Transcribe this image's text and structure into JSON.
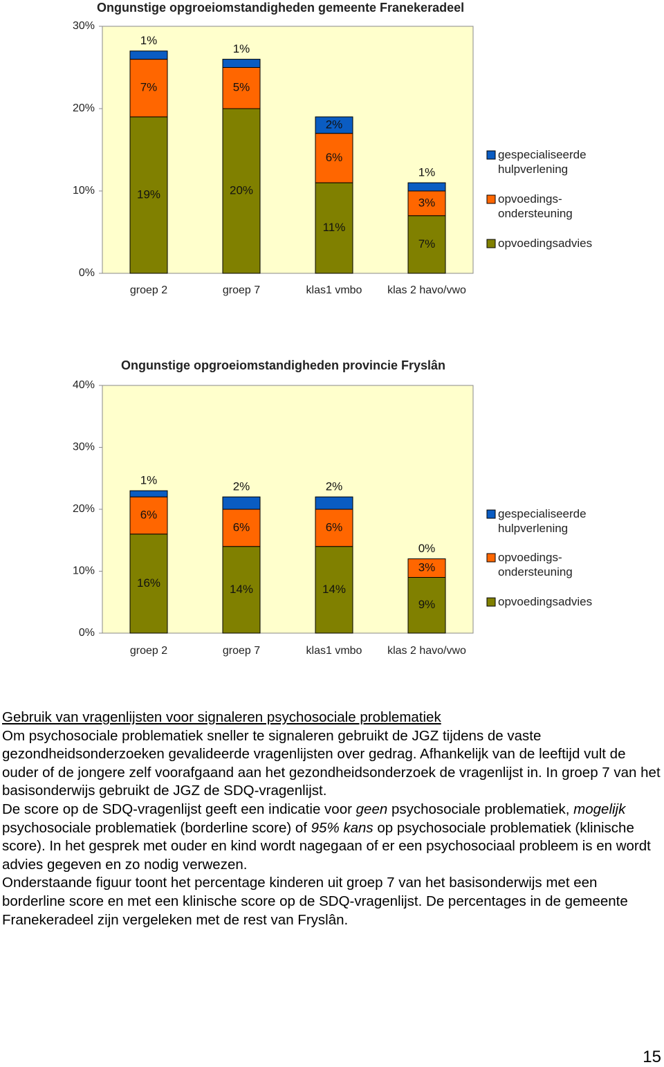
{
  "chart_data": [
    {
      "type": "stacked-bar",
      "title": "Ongunstige opgroeiomstandigheden gemeente Franekeradeel",
      "categories": [
        "groep 2",
        "groep 7",
        "klas1 vmbo",
        "klas 2 havo/vwo"
      ],
      "series": [
        {
          "name": "opvoedingsadvies",
          "color": "#808000",
          "values": [
            19,
            20,
            11,
            7
          ],
          "value_labels": [
            "19%",
            "20%",
            "11%",
            "7%"
          ]
        },
        {
          "name": "opvoedings-ondersteuning",
          "color": "#ff6600",
          "values": [
            7,
            5,
            6,
            3
          ],
          "value_labels": [
            "7%",
            "5%",
            "6%",
            "3%"
          ]
        },
        {
          "name": "gespecialiseerde hulpverlening",
          "color": "#0a5cc2",
          "values": [
            1,
            1,
            2,
            1
          ],
          "value_labels": [
            "1%",
            "1%",
            "2%",
            "1%"
          ]
        }
      ],
      "ylim": [
        0,
        30
      ],
      "yticks": [
        {
          "value": 0,
          "label": "0%"
        },
        {
          "value": 10,
          "label": "10%"
        },
        {
          "value": 20,
          "label": "20%"
        },
        {
          "value": 30,
          "label": "30%"
        }
      ],
      "legend": "right",
      "background": "#ffffcc"
    },
    {
      "type": "stacked-bar",
      "title": "Ongunstige opgroeiomstandigheden provincie Fryslân",
      "categories": [
        "groep 2",
        "groep 7",
        "klas1 vmbo",
        "klas 2 havo/vwo"
      ],
      "series": [
        {
          "name": "opvoedingsadvies",
          "color": "#808000",
          "values": [
            16,
            14,
            14,
            9
          ],
          "value_labels": [
            "16%",
            "14%",
            "14%",
            "9%"
          ]
        },
        {
          "name": "opvoedings-ondersteuning",
          "color": "#ff6600",
          "values": [
            6,
            6,
            6,
            3
          ],
          "value_labels": [
            "6%",
            "6%",
            "6%",
            "3%"
          ]
        },
        {
          "name": "gespecialiseerde hulpverlening",
          "color": "#0a5cc2",
          "values": [
            1,
            2,
            2,
            0
          ],
          "value_labels": [
            "1%",
            "2%",
            "2%",
            "0%"
          ]
        }
      ],
      "ylim": [
        0,
        40
      ],
      "yticks": [
        {
          "value": 0,
          "label": "0%"
        },
        {
          "value": 10,
          "label": "10%"
        },
        {
          "value": 20,
          "label": "20%"
        },
        {
          "value": 30,
          "label": "30%"
        },
        {
          "value": 40,
          "label": "40%"
        }
      ],
      "legend": "right",
      "background": "#ffffcc"
    }
  ],
  "document": {
    "heading": "Gebruik van vragenlijsten voor signaleren psychosociale problematiek",
    "paragraph_1": "Om psychosociale problematiek sneller te signaleren gebruikt de JGZ tijdens de vaste gezondheidsonderzoeken gevalideerde vragenlijsten over gedrag. Afhankelijk van de leeftijd vult de ouder of de jongere zelf voorafgaand aan het gezondheidsonderzoek de vragenlijst in. In groep 7 van het basisonderwijs gebruikt de JGZ de SDQ-vragenlijst.",
    "paragraph_2": [
      "De score op de SDQ-vragenlijst geeft een indicatie voor ",
      "geen",
      " psychosociale problematiek, ",
      "mogelijk",
      " psychosociale problematiek (borderline score) of ",
      "95% kans",
      " op psychosociale problematiek (klinische score). In het gesprek met ouder en kind wordt nagegaan of er een psychosociaal probleem is en wordt advies gegeven en zo nodig verwezen."
    ],
    "paragraph_3": "Onderstaande figuur toont het percentage kinderen uit groep 7 van het basisonderwijs met een borderline score en met een klinische score op de SDQ-vragenlijst. De percentages in de gemeente Franekeradeel zijn vergeleken met de rest van Fryslân.",
    "page_number": "15"
  }
}
